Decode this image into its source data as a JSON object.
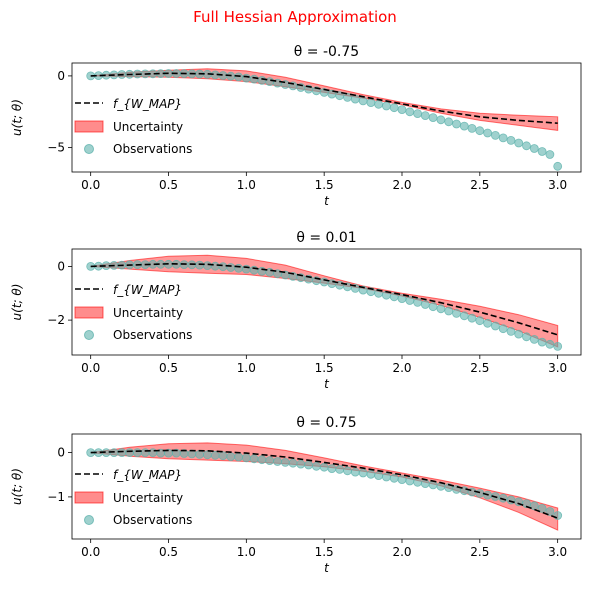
{
  "figure": {
    "suptitle": "Full Hessian Approximation",
    "suptitle_color": "#ff0000"
  },
  "colors": {
    "mean_line": "#000000",
    "band": "#ff0000",
    "observations": "#5fb3ad"
  },
  "chart_data": [
    {
      "type": "line",
      "title": "θ = -0.75",
      "xlabel": "t",
      "ylabel": "u(t; θ)",
      "xlim": [
        -0.12,
        3.15
      ],
      "ylim": [
        -6.7,
        0.9
      ],
      "xticks": [
        0.0,
        0.5,
        1.0,
        1.5,
        2.0,
        2.5,
        3.0
      ],
      "xticklabels": [
        "0.0",
        "0.5",
        "1.0",
        "1.5",
        "2.0",
        "2.5",
        "3.0"
      ],
      "yticks": [
        0,
        -5
      ],
      "yticklabels": [
        "0",
        "−5"
      ],
      "legend": {
        "position": "lower-left",
        "entries": [
          "f_{W_MAP}",
          "Uncertainty",
          "Observations"
        ]
      },
      "series": [
        {
          "name": "f_{W_MAP}",
          "kind": "dashed-line",
          "x": [
            0,
            0.25,
            0.5,
            0.75,
            1.0,
            1.25,
            1.5,
            1.75,
            2.0,
            2.25,
            2.5,
            2.75,
            3.0
          ],
          "y": [
            0,
            0.1,
            0.18,
            0.15,
            -0.05,
            -0.45,
            -0.95,
            -1.45,
            -1.95,
            -2.45,
            -2.85,
            -3.1,
            -3.3
          ]
        },
        {
          "name": "Uncertainty",
          "kind": "band",
          "x": [
            0,
            0.25,
            0.5,
            0.75,
            1.0,
            1.25,
            1.5,
            1.75,
            2.0,
            2.25,
            2.5,
            2.75,
            3.0
          ],
          "lower": [
            0,
            -0.05,
            -0.1,
            -0.2,
            -0.4,
            -0.75,
            -1.15,
            -1.55,
            -2.0,
            -2.6,
            -3.1,
            -3.45,
            -3.8
          ],
          "upper": [
            0,
            0.25,
            0.4,
            0.5,
            0.35,
            -0.1,
            -0.7,
            -1.3,
            -1.85,
            -2.3,
            -2.6,
            -2.75,
            -2.85
          ]
        },
        {
          "name": "Observations",
          "kind": "scatter",
          "x": [
            0.0,
            0.05,
            0.1,
            0.15,
            0.2,
            0.25,
            0.3,
            0.35,
            0.4,
            0.45,
            0.5,
            0.55,
            0.6,
            0.65,
            0.7,
            0.75,
            0.8,
            0.85,
            0.9,
            0.95,
            1.0,
            1.05,
            1.1,
            1.15,
            1.2,
            1.25,
            1.3,
            1.35,
            1.4,
            1.45,
            1.5,
            1.55,
            1.6,
            1.65,
            1.7,
            1.75,
            1.8,
            1.85,
            1.9,
            1.95,
            2.0,
            2.05,
            2.1,
            2.15,
            2.2,
            2.25,
            2.3,
            2.35,
            2.4,
            2.45,
            2.5,
            2.55,
            2.6,
            2.65,
            2.7,
            2.75,
            2.8,
            2.85,
            2.9,
            2.95,
            3.0
          ],
          "y": [
            0.0,
            0.02,
            0.05,
            0.07,
            0.1,
            0.11,
            0.13,
            0.14,
            0.15,
            0.16,
            0.17,
            0.17,
            0.16,
            0.15,
            0.13,
            0.11,
            0.07,
            0.03,
            -0.02,
            -0.07,
            -0.15,
            -0.22,
            -0.31,
            -0.4,
            -0.5,
            -0.6,
            -0.7,
            -0.81,
            -0.92,
            -1.04,
            -1.15,
            -1.27,
            -1.38,
            -1.5,
            -1.62,
            -1.74,
            -1.86,
            -1.98,
            -2.1,
            -2.22,
            -2.35,
            -2.5,
            -2.63,
            -2.77,
            -2.91,
            -3.06,
            -3.2,
            -3.35,
            -3.5,
            -3.66,
            -3.82,
            -3.98,
            -4.15,
            -4.32,
            -4.5,
            -4.68,
            -4.87,
            -5.06,
            -5.27,
            -5.48,
            -6.3
          ]
        }
      ]
    },
    {
      "type": "line",
      "title": "θ = 0.01",
      "xlabel": "t",
      "ylabel": "u(t; θ)",
      "xlim": [
        -0.12,
        3.15
      ],
      "ylim": [
        -3.3,
        0.65
      ],
      "xticks": [
        0.0,
        0.5,
        1.0,
        1.5,
        2.0,
        2.5,
        3.0
      ],
      "xticklabels": [
        "0.0",
        "0.5",
        "1.0",
        "1.5",
        "2.0",
        "2.5",
        "3.0"
      ],
      "yticks": [
        0,
        -2
      ],
      "yticklabels": [
        "0",
        "−2"
      ],
      "legend": {
        "position": "lower-left",
        "entries": [
          "f_{W_MAP}",
          "Uncertainty",
          "Observations"
        ]
      },
      "series": [
        {
          "name": "f_{W_MAP}",
          "kind": "dashed-line",
          "x": [
            0,
            0.25,
            0.5,
            0.75,
            1.0,
            1.25,
            1.5,
            1.75,
            2.0,
            2.25,
            2.5,
            2.75,
            3.0
          ],
          "y": [
            0,
            0.05,
            0.1,
            0.08,
            -0.03,
            -0.22,
            -0.5,
            -0.78,
            -1.05,
            -1.35,
            -1.7,
            -2.1,
            -2.55
          ]
        },
        {
          "name": "Uncertainty",
          "kind": "band",
          "x": [
            0,
            0.25,
            0.5,
            0.75,
            1.0,
            1.25,
            1.5,
            1.75,
            2.0,
            2.25,
            2.5,
            2.75,
            3.0
          ],
          "lower": [
            0,
            -0.1,
            -0.2,
            -0.25,
            -0.3,
            -0.45,
            -0.62,
            -0.82,
            -1.1,
            -1.45,
            -1.9,
            -2.4,
            -3.0
          ],
          "upper": [
            0,
            0.22,
            0.38,
            0.42,
            0.3,
            0.05,
            -0.35,
            -0.73,
            -1.0,
            -1.22,
            -1.48,
            -1.8,
            -2.2
          ]
        },
        {
          "name": "Observations",
          "kind": "scatter",
          "x": [
            0.0,
            0.05,
            0.1,
            0.15,
            0.2,
            0.25,
            0.3,
            0.35,
            0.4,
            0.45,
            0.5,
            0.55,
            0.6,
            0.65,
            0.7,
            0.75,
            0.8,
            0.85,
            0.9,
            0.95,
            1.0,
            1.05,
            1.1,
            1.15,
            1.2,
            1.25,
            1.3,
            1.35,
            1.4,
            1.45,
            1.5,
            1.55,
            1.6,
            1.65,
            1.7,
            1.75,
            1.8,
            1.85,
            1.9,
            1.95,
            2.0,
            2.05,
            2.1,
            2.15,
            2.2,
            2.25,
            2.3,
            2.35,
            2.4,
            2.45,
            2.5,
            2.55,
            2.6,
            2.65,
            2.7,
            2.75,
            2.8,
            2.85,
            2.9,
            2.95,
            3.0
          ],
          "y": [
            0.0,
            0.01,
            0.03,
            0.04,
            0.05,
            0.06,
            0.07,
            0.07,
            0.08,
            0.08,
            0.08,
            0.08,
            0.07,
            0.06,
            0.05,
            0.03,
            0.01,
            -0.01,
            -0.04,
            -0.07,
            -0.1,
            -0.14,
            -0.18,
            -0.22,
            -0.27,
            -0.32,
            -0.37,
            -0.42,
            -0.47,
            -0.53,
            -0.58,
            -0.64,
            -0.7,
            -0.76,
            -0.82,
            -0.88,
            -0.94,
            -1.0,
            -1.07,
            -1.13,
            -1.2,
            -1.27,
            -1.34,
            -1.42,
            -1.5,
            -1.58,
            -1.66,
            -1.75,
            -1.84,
            -1.93,
            -2.02,
            -2.12,
            -2.22,
            -2.32,
            -2.42,
            -2.52,
            -2.62,
            -2.72,
            -2.82,
            -2.9,
            -2.98
          ]
        }
      ]
    },
    {
      "type": "line",
      "title": "θ = 0.75",
      "xlabel": "t",
      "ylabel": "u(t; θ)",
      "xlim": [
        -0.12,
        3.15
      ],
      "ylim": [
        -1.95,
        0.42
      ],
      "xticks": [
        0.0,
        0.5,
        1.0,
        1.5,
        2.0,
        2.5,
        3.0
      ],
      "xticklabels": [
        "0.0",
        "0.5",
        "1.0",
        "1.5",
        "2.0",
        "2.5",
        "3.0"
      ],
      "yticks": [
        0,
        -1
      ],
      "yticklabels": [
        "0",
        "−1"
      ],
      "legend": {
        "position": "lower-left",
        "entries": [
          "f_{W_MAP}",
          "Uncertainty",
          "Observations"
        ]
      },
      "series": [
        {
          "name": "f_{W_MAP}",
          "kind": "dashed-line",
          "x": [
            0,
            0.25,
            0.5,
            0.75,
            1.0,
            1.25,
            1.5,
            1.75,
            2.0,
            2.25,
            2.5,
            2.75,
            3.0
          ],
          "y": [
            0,
            0.03,
            0.05,
            0.04,
            -0.01,
            -0.1,
            -0.22,
            -0.35,
            -0.5,
            -0.68,
            -0.9,
            -1.15,
            -1.48
          ]
        },
        {
          "name": "Uncertainty",
          "kind": "band",
          "x": [
            0,
            0.25,
            0.5,
            0.75,
            1.0,
            1.25,
            1.5,
            1.75,
            2.0,
            2.25,
            2.5,
            2.75,
            3.0
          ],
          "lower": [
            0,
            -0.08,
            -0.14,
            -0.17,
            -0.2,
            -0.25,
            -0.32,
            -0.42,
            -0.55,
            -0.75,
            -1.02,
            -1.35,
            -1.75
          ],
          "upper": [
            0,
            0.12,
            0.2,
            0.22,
            0.17,
            0.05,
            -0.12,
            -0.3,
            -0.46,
            -0.62,
            -0.8,
            -1.0,
            -1.25
          ]
        },
        {
          "name": "Observations",
          "kind": "scatter",
          "x": [
            0.0,
            0.05,
            0.1,
            0.15,
            0.2,
            0.25,
            0.3,
            0.35,
            0.4,
            0.45,
            0.5,
            0.55,
            0.6,
            0.65,
            0.7,
            0.75,
            0.8,
            0.85,
            0.9,
            0.95,
            1.0,
            1.05,
            1.1,
            1.15,
            1.2,
            1.25,
            1.3,
            1.35,
            1.4,
            1.45,
            1.5,
            1.55,
            1.6,
            1.65,
            1.7,
            1.75,
            1.8,
            1.85,
            1.9,
            1.95,
            2.0,
            2.05,
            2.1,
            2.15,
            2.2,
            2.25,
            2.3,
            2.35,
            2.4,
            2.45,
            2.5,
            2.55,
            2.6,
            2.65,
            2.7,
            2.75,
            2.8,
            2.85,
            2.9,
            2.95,
            3.0
          ],
          "y": [
            0.0,
            0.0,
            0.0,
            0.0,
            0.0,
            0.0,
            0.0,
            0.0,
            0.0,
            -0.01,
            -0.01,
            -0.01,
            -0.02,
            -0.03,
            -0.04,
            -0.05,
            -0.06,
            -0.07,
            -0.09,
            -0.1,
            -0.12,
            -0.14,
            -0.16,
            -0.18,
            -0.2,
            -0.22,
            -0.24,
            -0.26,
            -0.28,
            -0.31,
            -0.33,
            -0.36,
            -0.38,
            -0.41,
            -0.44,
            -0.46,
            -0.49,
            -0.52,
            -0.55,
            -0.58,
            -0.61,
            -0.64,
            -0.67,
            -0.7,
            -0.73,
            -0.76,
            -0.79,
            -0.83,
            -0.86,
            -0.89,
            -0.92,
            -0.96,
            -0.99,
            -1.03,
            -1.07,
            -1.11,
            -1.15,
            -1.2,
            -1.26,
            -1.33,
            -1.42
          ]
        }
      ]
    }
  ]
}
